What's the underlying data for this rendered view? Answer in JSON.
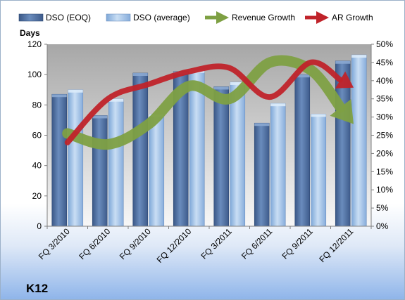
{
  "chart_data": {
    "type": "bar",
    "title": "",
    "company": "K12",
    "ylabel": "Days",
    "ylim": [
      0,
      120
    ],
    "y_ticks": [
      0,
      20,
      40,
      60,
      80,
      100,
      120
    ],
    "y2lim": [
      0,
      50
    ],
    "y2_ticks": [
      "0%",
      "5%",
      "10%",
      "15%",
      "20%",
      "25%",
      "30%",
      "35%",
      "40%",
      "45%",
      "50%"
    ],
    "categories": [
      "FQ 3/2010",
      "FQ 6/2010",
      "FQ 9/2010",
      "FQ 12/2010",
      "FQ 3/2011",
      "FQ 6/2011",
      "FQ 9/2011",
      "FQ 12/2011"
    ],
    "series": [
      {
        "name": "DSO (EOQ)",
        "values": [
          87,
          73,
          101,
          102,
          92,
          68,
          100,
          109
        ]
      },
      {
        "name": "DSO (average)",
        "values": [
          90,
          84,
          74,
          103,
          95,
          81,
          74,
          113
        ]
      },
      {
        "name": "Revenue Growth",
        "values": [
          25.5,
          22.5,
          28,
          38.5,
          35,
          45,
          43,
          29
        ]
      },
      {
        "name": "AR Growth",
        "values": [
          23,
          35,
          39,
          42.5,
          43.5,
          35.5,
          45,
          38.5
        ]
      }
    ],
    "grid": false,
    "legend_position": "top",
    "colors": {
      "dso_eoq": "#4f6f9f",
      "dso_avg": "#a4c6ec",
      "revenue_growth": "#7ea043",
      "ar_growth": "#c0232a",
      "plot_bg_top": "#a7a7a7",
      "plot_bg_bottom": "#f7f7f7"
    }
  }
}
